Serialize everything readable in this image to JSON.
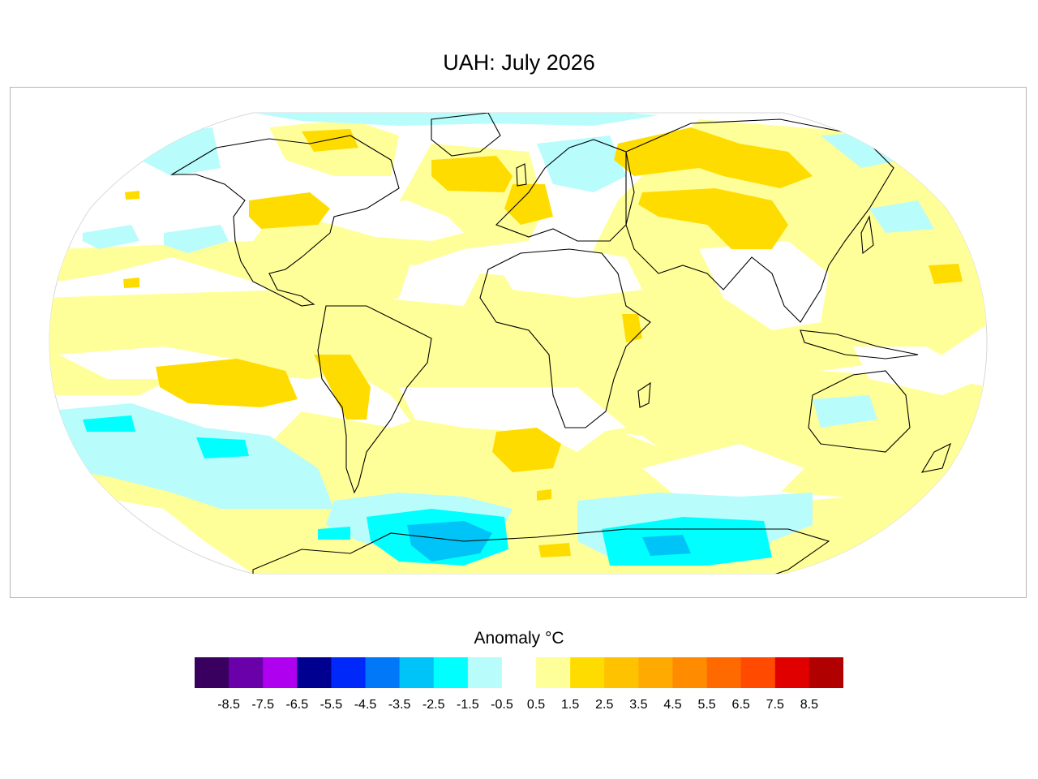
{
  "map": {
    "title": "UAH: July 2026",
    "projection": "robinson",
    "palette": {
      "ocean_background": "#ffffff",
      "land_outline": "#000000",
      "frame": "#b5b5b5"
    }
  },
  "legend": {
    "title": "Anomaly °C",
    "bins": [
      {
        "color": "#3a0060"
      },
      {
        "color": "#6a00aa"
      },
      {
        "color": "#b000f0"
      },
      {
        "color": "#000090"
      },
      {
        "color": "#0028f8"
      },
      {
        "color": "#0078f8"
      },
      {
        "color": "#00c4f8"
      },
      {
        "color": "#00ffff"
      },
      {
        "color": "#b8fcfc"
      },
      {
        "color": "#ffffff"
      },
      {
        "color": "#ffff99"
      },
      {
        "color": "#ffdc00"
      },
      {
        "color": "#ffc200"
      },
      {
        "color": "#ffaa00"
      },
      {
        "color": "#ff8c00"
      },
      {
        "color": "#ff6a00"
      },
      {
        "color": "#ff4a00"
      },
      {
        "color": "#e00000"
      },
      {
        "color": "#b00000"
      }
    ],
    "ticks": [
      "-8.5",
      "-7.5",
      "-6.5",
      "-5.5",
      "-4.5",
      "-3.5",
      "-2.5",
      "-1.5",
      "-0.5",
      "0.5",
      "1.5",
      "2.5",
      "3.5",
      "4.5",
      "5.5",
      "6.5",
      "7.5",
      "8.5"
    ]
  }
}
